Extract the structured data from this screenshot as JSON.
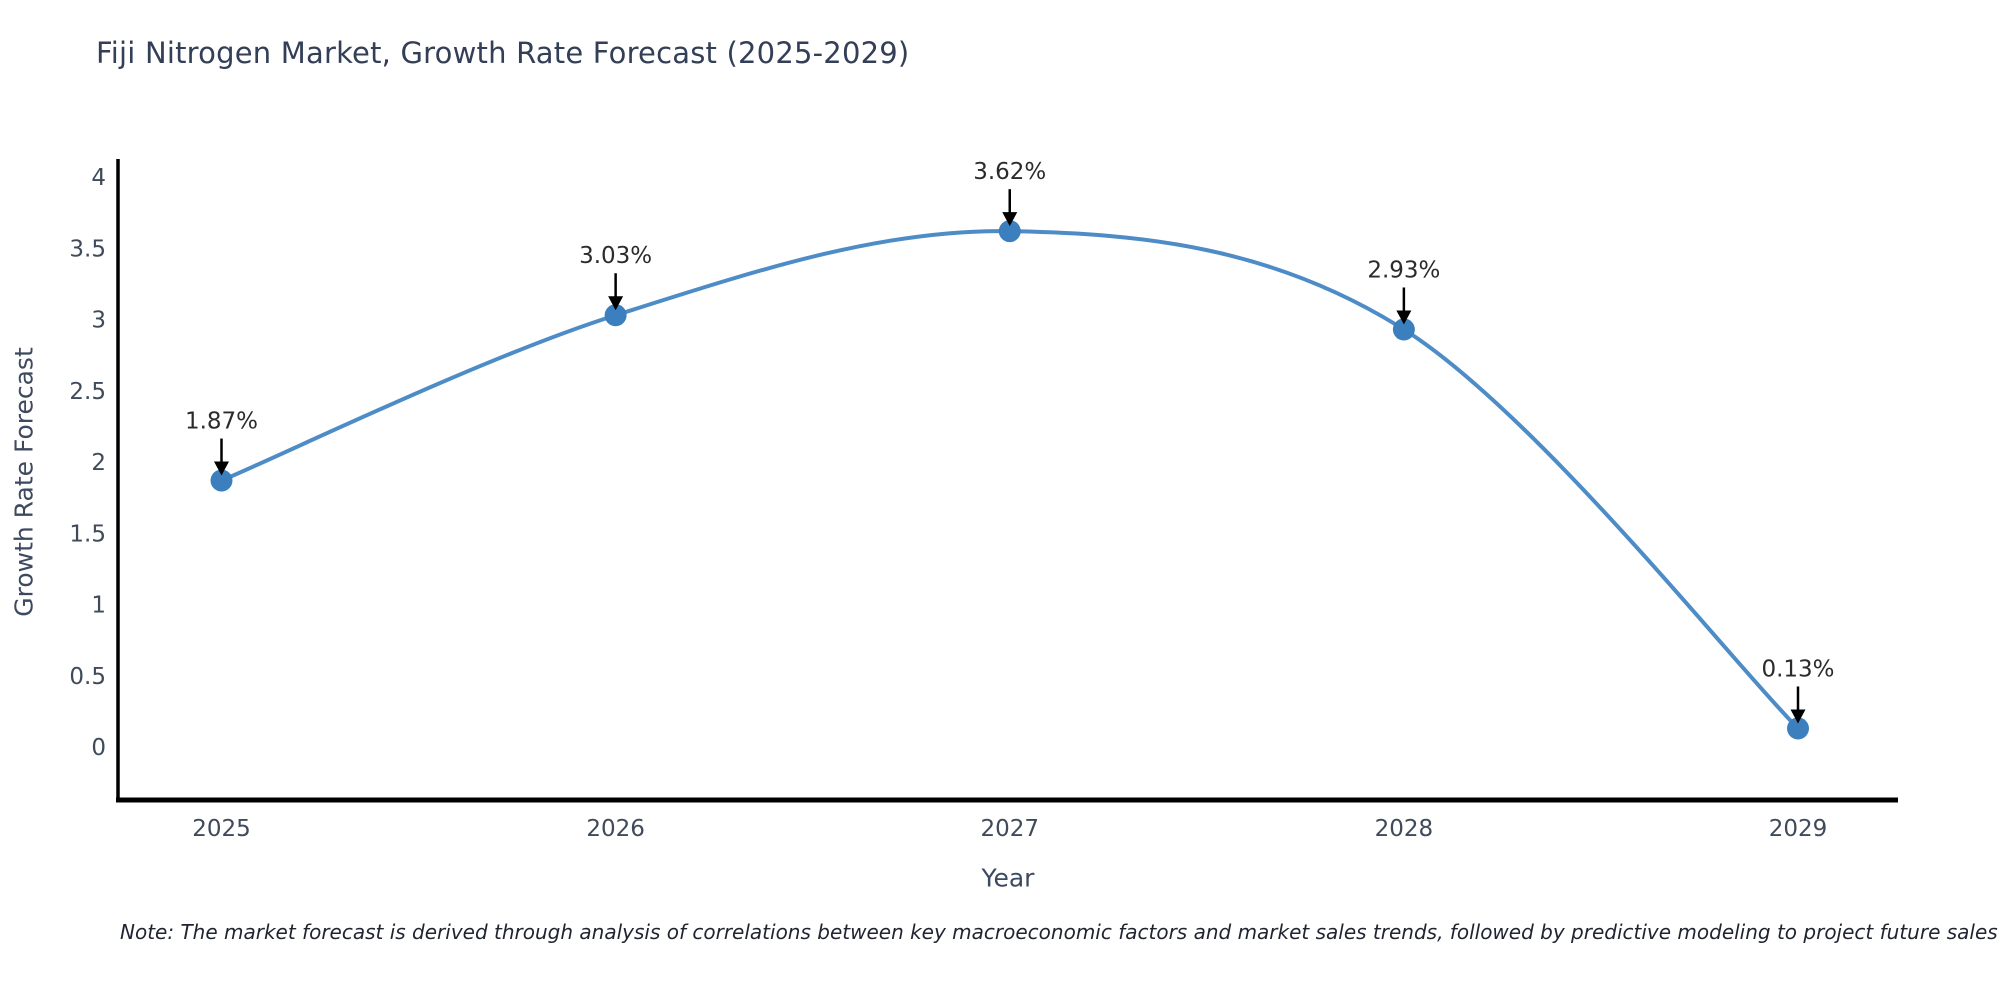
{
  "title": "Fiji Nitrogen Market, Growth Rate Forecast (2025-2029)",
  "note": "Note: The market forecast is derived through analysis of correlations between key macroeconomic factors and market sales trends, followed by predictive modeling to project future sales",
  "chart_data": {
    "type": "line",
    "title": "Fiji Nitrogen Market, Growth Rate Forecast (2025-2029)",
    "xlabel": "Year",
    "ylabel": "Growth Rate Forecast",
    "x": [
      2025,
      2026,
      2027,
      2028,
      2029
    ],
    "x_tick_labels": [
      "2025",
      "2026",
      "2027",
      "2028",
      "2029"
    ],
    "values": [
      1.87,
      3.03,
      3.62,
      2.93,
      0.13
    ],
    "point_labels": [
      "1.87%",
      "3.03%",
      "3.62%",
      "2.93%",
      "0.13%"
    ],
    "ylim": [
      0,
      4
    ],
    "yticks": [
      0,
      0.5,
      1,
      1.5,
      2,
      2.5,
      3,
      3.5,
      4
    ],
    "ytick_labels": [
      "0",
      "0.5",
      "1",
      "1.5",
      "2",
      "2.5",
      "3",
      "3.5",
      "4"
    ],
    "grid": false,
    "legend": "none",
    "line_style": "spline",
    "markers": true,
    "annotations": "value labels with downward black arrows above each point",
    "colors": {
      "line": "#4d8cc6",
      "marker": "#3c7fbe",
      "axis": "#000000",
      "tick_text": "#3f4a5a",
      "annotation_text": "#2b2b2b",
      "arrow": "#000000",
      "title_text": "#333e57",
      "axis_title_text": "#3d4960"
    }
  }
}
